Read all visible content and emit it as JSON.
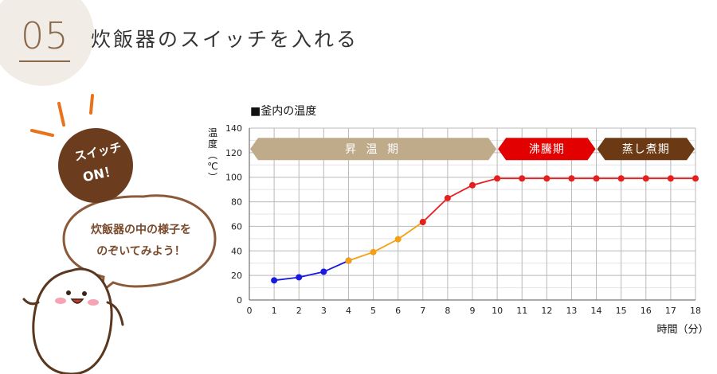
{
  "header": {
    "step_number": "05",
    "step_title": "炊飯器のスイッチを入れる"
  },
  "illustration": {
    "switch_line1": "スイッチ",
    "switch_line2": "ON！",
    "bubble_line1": "炊飯器の中の様子を",
    "bubble_line2": "のぞいてみよう！",
    "colors": {
      "switch_bg": "#6b3d1e",
      "bubble_border": "#8a5a3a",
      "accent": "#e8731a"
    }
  },
  "chart_data": {
    "type": "line",
    "title": "■釜内の温度",
    "ylabel": "温度（℃）",
    "xlabel": "時間（分）",
    "xlim": [
      0,
      18
    ],
    "ylim": [
      0,
      140
    ],
    "x_ticks": [
      0,
      1,
      2,
      3,
      4,
      5,
      6,
      7,
      8,
      9,
      10,
      11,
      12,
      13,
      14,
      15,
      16,
      17,
      18
    ],
    "y_ticks": [
      0,
      20,
      40,
      60,
      80,
      100,
      120,
      140
    ],
    "grid": true,
    "series": [
      {
        "color": "#1a1adc",
        "x": [
          1,
          2,
          3,
          4
        ],
        "y": [
          16,
          18.5,
          23,
          32
        ]
      },
      {
        "color": "#f5a014",
        "x": [
          4,
          5,
          6,
          7
        ],
        "y": [
          32,
          39,
          49.5,
          63.5
        ]
      },
      {
        "color": "#e61e1e",
        "x": [
          7,
          8,
          9,
          10,
          11,
          12,
          13,
          14,
          15,
          16,
          17,
          18
        ],
        "y": [
          63.5,
          83,
          93.5,
          99,
          99,
          99,
          99,
          99,
          99,
          99,
          99,
          99
        ]
      }
    ],
    "phases": [
      {
        "label": "昇 温 期",
        "x_start": 0,
        "x_end": 10,
        "color": "#bfab8a",
        "text_color": "#ffffff"
      },
      {
        "label": "沸騰期",
        "x_start": 10,
        "x_end": 14,
        "color": "#e30000",
        "text_color": "#ffffff"
      },
      {
        "label": "蒸し煮期",
        "x_start": 14,
        "x_end": 18,
        "color": "#6b3a14",
        "text_color": "#ffffff"
      }
    ],
    "phase_y": 123
  }
}
